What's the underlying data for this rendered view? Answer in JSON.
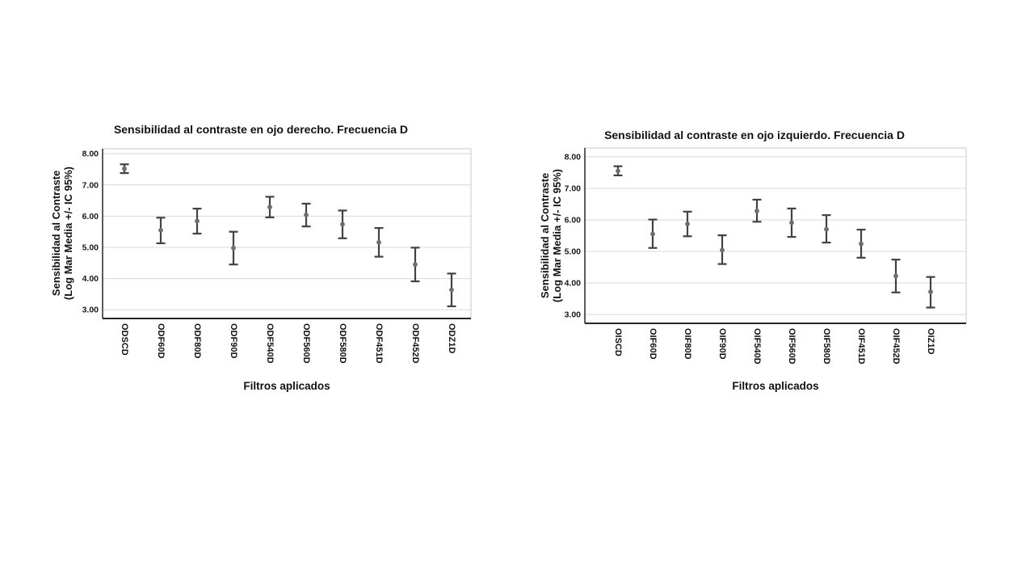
{
  "page": {
    "background": "#ffffff"
  },
  "colors": {
    "error_bar": "#424242",
    "mean_dot": "#6e6e6e",
    "gridline": "#d8d8d8",
    "axis_dark": "#262626",
    "border_light": "#c9c9c9",
    "text": "#1a1a1a"
  },
  "chart_data": [
    {
      "type": "scatter",
      "subtype": "error-bar-means-95ci",
      "title": "Sensibilidad al contraste en ojo derecho. Frecuencia D",
      "ylabel_line1": "Sensibilidad al Contraste",
      "ylabel_line2": "(Log Mar Media +/- IC 95%)",
      "xlabel": "Filtros aplicados",
      "categories": [
        "ODSCD",
        "ODF60D",
        "ODF80D",
        "ODF90D",
        "ODF540D",
        "ODF560D",
        "ODF580D",
        "ODF451D",
        "ODF452D",
        "ODZ1D"
      ],
      "means": [
        7.52,
        5.55,
        5.84,
        4.98,
        6.29,
        6.04,
        5.74,
        5.16,
        4.45,
        3.64
      ],
      "ci_low": [
        7.38,
        5.13,
        5.44,
        4.45,
        5.96,
        5.67,
        5.29,
        4.7,
        3.91,
        3.11
      ],
      "ci_high": [
        7.66,
        5.95,
        6.24,
        5.5,
        6.62,
        6.4,
        6.18,
        5.62,
        4.99,
        4.16
      ],
      "yticks": [
        8,
        7,
        6,
        5,
        4,
        3
      ],
      "ytick_labels": [
        "8.00",
        "7.00",
        "6.00",
        "5.00",
        "4.00",
        "3.00"
      ],
      "ylim": [
        2.72,
        8.16
      ],
      "grid": true,
      "legend": "none"
    },
    {
      "type": "scatter",
      "subtype": "error-bar-means-95ci",
      "title": "Sensibilidad al contraste en ojo izquierdo. Frecuencia D",
      "ylabel_line1": "Sensibilidad al Contraste",
      "ylabel_line2": "(Log Mar Media +/- IC 95%)",
      "xlabel": "Filtros aplicados",
      "categories": [
        "OISCD",
        "OIF60D",
        "OIF80D",
        "OIF90D",
        "OIF540D",
        "OIF560D",
        "OIF580D",
        "OIF451D",
        "OIF452D",
        "OIZ1D"
      ],
      "means": [
        7.55,
        5.55,
        5.87,
        5.04,
        6.28,
        5.91,
        5.7,
        5.24,
        4.22,
        3.72
      ],
      "ci_low": [
        7.41,
        5.11,
        5.48,
        4.6,
        5.94,
        5.46,
        5.28,
        4.8,
        3.7,
        3.22
      ],
      "ci_high": [
        7.7,
        6.01,
        6.26,
        5.51,
        6.64,
        6.36,
        6.15,
        5.69,
        4.74,
        4.19
      ],
      "yticks": [
        8,
        7,
        6,
        5,
        4,
        3
      ],
      "ytick_labels": [
        "8.00",
        "7.00",
        "6.00",
        "5.00",
        "4.00",
        "3.00"
      ],
      "ylim": [
        2.72,
        8.28
      ],
      "grid": true,
      "legend": "none"
    }
  ]
}
